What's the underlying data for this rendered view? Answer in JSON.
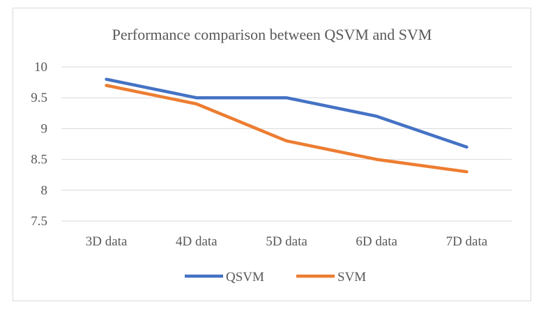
{
  "chart_data": {
    "type": "line",
    "title": "Performance comparison between QSVM and SVM",
    "xlabel": "",
    "ylabel": "",
    "categories": [
      "3D data",
      "4D data",
      "5D data",
      "6D data",
      "7D data"
    ],
    "y_ticks": [
      "7.5",
      "8",
      "8.5",
      "9",
      "9.5",
      "10"
    ],
    "ylim": [
      7.5,
      10
    ],
    "grid": true,
    "legend_position": "bottom",
    "series": [
      {
        "name": "QSVM",
        "color": "#4472c4",
        "values": [
          9.8,
          9.5,
          9.5,
          9.2,
          8.7
        ]
      },
      {
        "name": "SVM",
        "color": "#ed7d31",
        "values": [
          9.7,
          9.4,
          8.8,
          8.5,
          8.3
        ]
      }
    ]
  }
}
